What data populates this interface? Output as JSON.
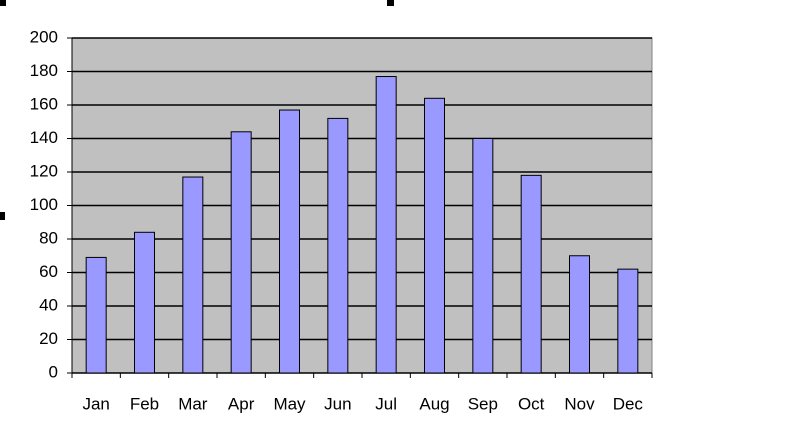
{
  "chart_data": {
    "type": "bar",
    "categories": [
      "Jan",
      "Feb",
      "Mar",
      "Apr",
      "May",
      "Jun",
      "Jul",
      "Aug",
      "Sep",
      "Oct",
      "Nov",
      "Dec"
    ],
    "values": [
      69,
      84,
      117,
      144,
      157,
      152,
      177,
      164,
      140,
      118,
      70,
      62
    ],
    "color": "#9999ff",
    "ylim": [
      0,
      200
    ],
    "yticks": [
      0,
      20,
      40,
      60,
      80,
      100,
      120,
      140,
      160,
      180,
      200
    ],
    "grid": true
  }
}
